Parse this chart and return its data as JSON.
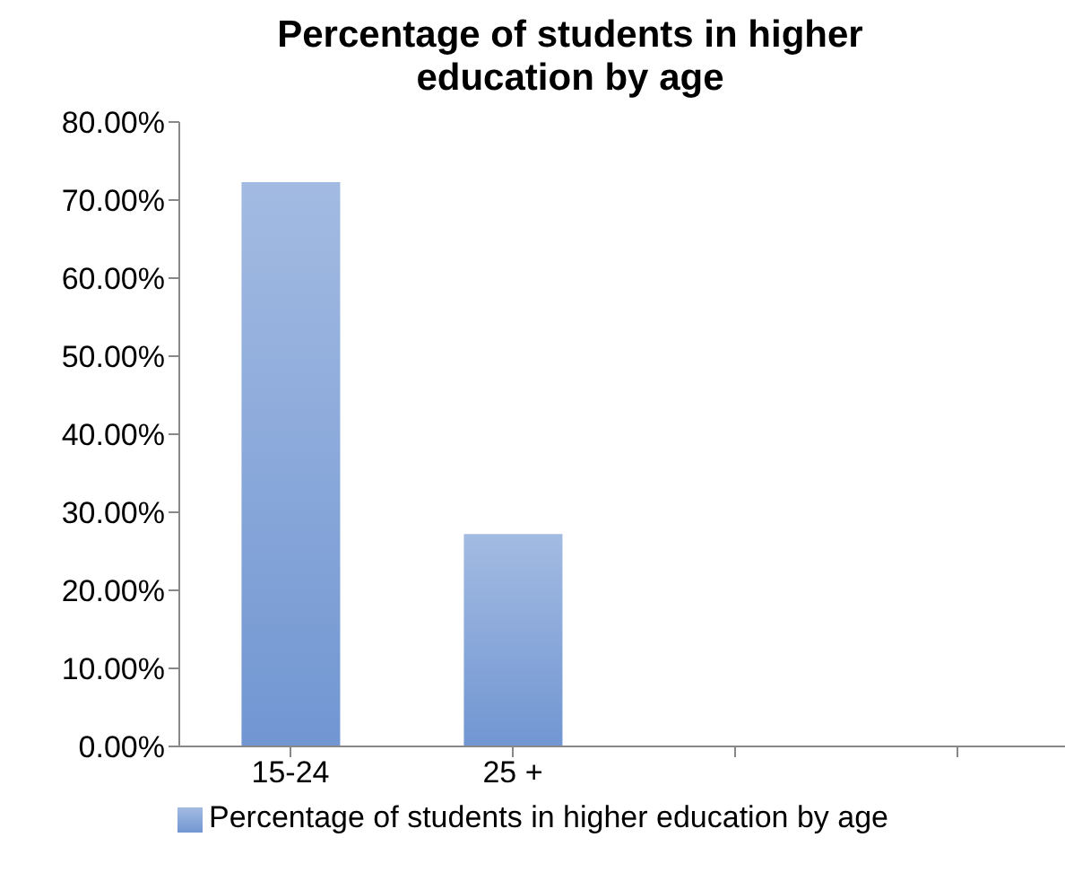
{
  "chart_data": {
    "type": "bar",
    "title": "Percentage of students in higher education by age",
    "categories": [
      "15-24",
      "25 +",
      null,
      null
    ],
    "series": [
      {
        "name": "Percentage of students in higher education by age",
        "color": "#7196d2",
        "values": [
          72.3,
          27.2,
          null,
          null
        ]
      }
    ],
    "ylim": [
      0,
      80
    ],
    "yticks": [
      {
        "value": 0,
        "label": "0.00%"
      },
      {
        "value": 10,
        "label": "10.00%"
      },
      {
        "value": 20,
        "label": "20.00%"
      },
      {
        "value": 30,
        "label": "30.00%"
      },
      {
        "value": 40,
        "label": "40.00%"
      },
      {
        "value": 50,
        "label": "50.00%"
      },
      {
        "value": 60,
        "label": "60.00%"
      },
      {
        "value": 70,
        "label": "70.00%"
      },
      {
        "value": 80,
        "label": "80.00%"
      }
    ],
    "grid": false,
    "legend": "bottom"
  }
}
